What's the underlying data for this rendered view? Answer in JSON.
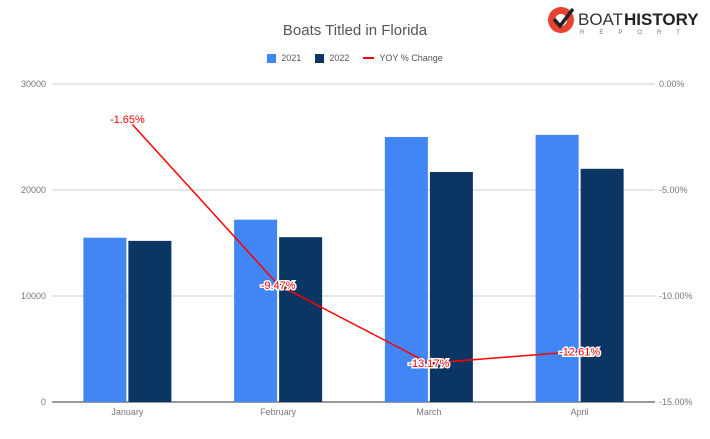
{
  "logo": {
    "text_bold": "HISTORY",
    "text_light": "BOAT",
    "subtext": "REPORT"
  },
  "chart_data": {
    "type": "bar",
    "title": "Boats Titled in Florida",
    "categories": [
      "January",
      "February",
      "March",
      "April"
    ],
    "series": [
      {
        "name": "2021",
        "type": "bar",
        "axis": "left",
        "color": "#4285f4",
        "values": [
          15500,
          17200,
          25000,
          25200
        ]
      },
      {
        "name": "2022",
        "type": "bar",
        "axis": "left",
        "color": "#0b3562",
        "values": [
          15200,
          15550,
          21700,
          22000
        ]
      },
      {
        "name": "YOY % Change",
        "type": "line",
        "axis": "right",
        "color": "#ff0000",
        "values": [
          -1.65,
          -9.47,
          -13.17,
          -12.61
        ],
        "labels": [
          "-1.65%",
          "-9.47%",
          "-13.17%",
          "-12.61%"
        ]
      }
    ],
    "y_left": {
      "range": [
        0,
        30000
      ],
      "ticks": [
        "0",
        "10000",
        "20000",
        "30000"
      ]
    },
    "y_right": {
      "range": [
        -15,
        0
      ],
      "ticks": [
        "-15.00%",
        "-10.00%",
        "-5.00%",
        "0.00%"
      ]
    },
    "grid": true,
    "legend_position": "top"
  }
}
